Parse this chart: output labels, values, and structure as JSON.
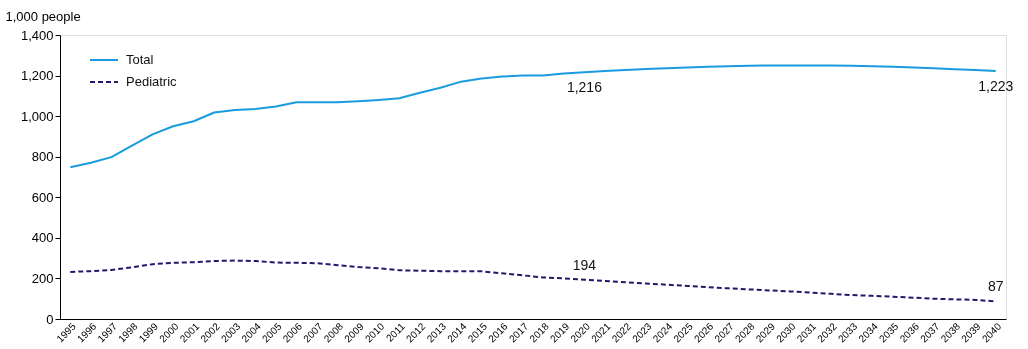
{
  "chart_data": {
    "type": "line",
    "ylabel": "1,000 people",
    "categories": [
      "1995",
      "1996",
      "1997",
      "1998",
      "1999",
      "2000",
      "2001",
      "2002",
      "2003",
      "2004",
      "2005",
      "2006",
      "2007",
      "2008",
      "2009",
      "2010",
      "2011",
      "2012",
      "2013",
      "2014",
      "2015",
      "2016",
      "2017",
      "2018",
      "2019",
      "2020",
      "2021",
      "2022",
      "2023",
      "2024",
      "2025",
      "2026",
      "2027",
      "2028",
      "2029",
      "2030",
      "2031",
      "2032",
      "2033",
      "2034",
      "2035",
      "2036",
      "2037",
      "2038",
      "2039",
      "2040"
    ],
    "series": [
      {
        "name": "Total",
        "color": "#1a9be0",
        "line_style": "solid",
        "values": [
          748,
          770,
          798,
          855,
          910,
          950,
          975,
          1018,
          1030,
          1035,
          1048,
          1068,
          1068,
          1068,
          1073,
          1080,
          1088,
          1115,
          1140,
          1170,
          1185,
          1195,
          1200,
          1200,
          1210,
          1216,
          1222,
          1228,
          1232,
          1236,
          1240,
          1243,
          1246,
          1248,
          1250,
          1250,
          1250,
          1250,
          1248,
          1246,
          1244,
          1240,
          1236,
          1231,
          1227,
          1223
        ],
        "value_labels": [
          null,
          null,
          null,
          null,
          null,
          null,
          null,
          null,
          null,
          null,
          null,
          null,
          null,
          null,
          null,
          null,
          null,
          null,
          null,
          null,
          null,
          null,
          null,
          null,
          null,
          "1,216",
          null,
          null,
          null,
          null,
          null,
          null,
          null,
          null,
          null,
          null,
          null,
          null,
          null,
          null,
          null,
          null,
          null,
          null,
          null,
          "1,223"
        ]
      },
      {
        "name": "Pediatric",
        "color": "#1f1a6e",
        "line_style": "dashed",
        "values": [
          232,
          236,
          242,
          255,
          270,
          277,
          280,
          286,
          288,
          286,
          278,
          277,
          275,
          265,
          256,
          250,
          240,
          238,
          236,
          235,
          235,
          225,
          215,
          205,
          200,
          194,
          187,
          181,
          175,
          169,
          163,
          157,
          151,
          146,
          141,
          136,
          130,
          124,
          118,
          114,
          110,
          105,
          100,
          97,
          94,
          87
        ],
        "value_labels": [
          null,
          null,
          null,
          null,
          null,
          null,
          null,
          null,
          null,
          null,
          null,
          null,
          null,
          null,
          null,
          null,
          null,
          null,
          null,
          null,
          null,
          null,
          null,
          null,
          null,
          "194",
          null,
          null,
          null,
          null,
          null,
          null,
          null,
          null,
          null,
          null,
          null,
          null,
          null,
          null,
          null,
          null,
          null,
          null,
          null,
          "87"
        ]
      }
    ],
    "ylim": [
      0,
      1400
    ],
    "yticks": [
      0,
      200,
      400,
      600,
      800,
      {
        "value": 1000,
        "label": "1,000"
      },
      {
        "value": 1200,
        "label": "1,200"
      },
      {
        "value": 1400,
        "label": "1,400"
      }
    ],
    "grid": false,
    "legend": "top left"
  }
}
